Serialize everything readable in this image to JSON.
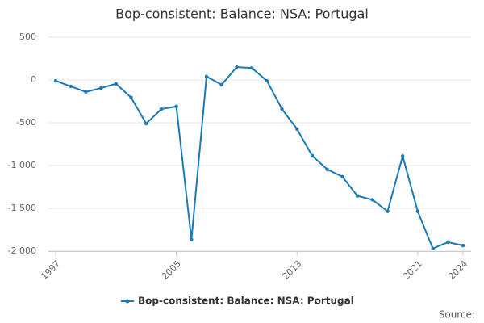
{
  "chart_data": {
    "type": "line",
    "title": "Bop-consistent: Balance: NSA: Portugal",
    "x": [
      1997,
      1998,
      1999,
      2000,
      2001,
      2002,
      2003,
      2004,
      2005,
      2006,
      2007,
      2008,
      2009,
      2010,
      2011,
      2012,
      2013,
      2014,
      2015,
      2016,
      2017,
      2018,
      2019,
      2020,
      2021,
      2022,
      2023,
      2024
    ],
    "series": [
      {
        "name": "Bop-consistent: Balance: NSA: Portugal",
        "color": "#1a7ab5",
        "values": [
          -10,
          -75,
          -140,
          -95,
          -45,
          -205,
          -510,
          -340,
          -310,
          -1865,
          40,
          -55,
          150,
          140,
          -10,
          -340,
          -575,
          -885,
          -1045,
          -1130,
          -1355,
          -1400,
          -1535,
          -890,
          -1535,
          -1970,
          -1895,
          -1935
        ]
      }
    ],
    "xlim": [
      1997,
      2024
    ],
    "xticks": [
      1997,
      2005,
      2013,
      2021,
      2024
    ],
    "ylim": [
      -2000,
      500
    ],
    "yticks": [
      500,
      0,
      -500,
      {
        "value": -1000,
        "label": "-1 000"
      },
      {
        "value": -1500,
        "label": "-1 500"
      },
      {
        "value": -2000,
        "label": "-2 000"
      }
    ],
    "grid": true,
    "legend": "bottom",
    "source_label": "Source:"
  }
}
